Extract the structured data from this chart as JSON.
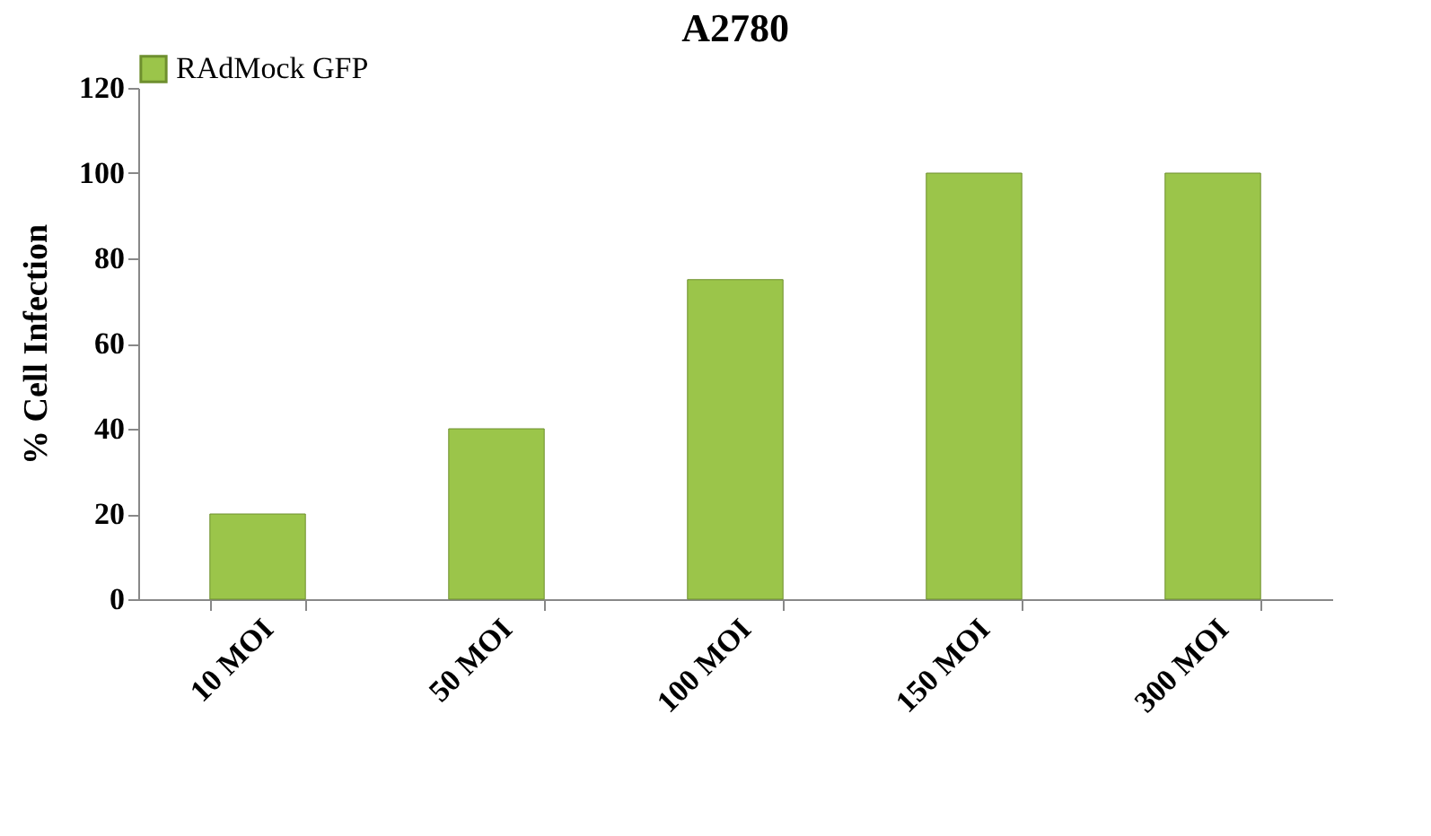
{
  "chart_data": {
    "type": "bar",
    "title": "A2780",
    "ylabel": "% Cell Infection",
    "categories": [
      "10 MOI",
      "50 MOI",
      "100 MOI",
      "150 MOI",
      "300 MOI"
    ],
    "series": [
      {
        "name": "RAdMock GFP",
        "color": "#9bc54a",
        "values": [
          20,
          40,
          75,
          100,
          100
        ]
      }
    ],
    "ylim": [
      0,
      120
    ],
    "yticks": [
      0,
      20,
      40,
      60,
      80,
      100,
      120
    ],
    "grid": false,
    "legend": "top"
  }
}
